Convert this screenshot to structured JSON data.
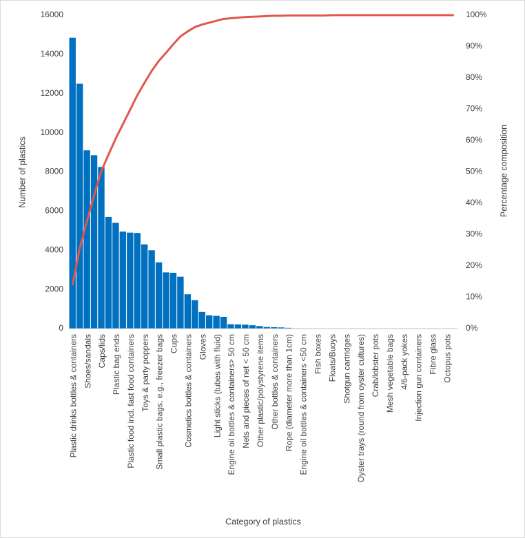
{
  "chart_data": {
    "type": "pareto",
    "x_label": "Category of plastics",
    "y_label": "Number of plastics",
    "y2_label": "Percentage composition",
    "categories": [
      "Plastic drinks bottles & containers",
      null,
      "Shoes/sandals",
      null,
      "Caps/lids",
      null,
      "Plastic bag ends",
      null,
      "Plastic food incl. fast food containers",
      null,
      "Toys & party poppers",
      null,
      "Small plastic bags, e.g., freezer bags",
      null,
      "Cups",
      null,
      "Cosmetics bottles & containers",
      null,
      "Gloves",
      null,
      "Light sticks (tubes with fluid)",
      null,
      "Engine oil bottles & containers> 50 cm",
      null,
      "Nets and pieces of net < 50 cm",
      null,
      "Other plastic/polystyrene items",
      null,
      "Other bottles & containers",
      null,
      "Rope (diameter more than 1cm)",
      null,
      "Engine oil bottles & containers <50 cm",
      null,
      "Fish boxes",
      null,
      "Floats/Buoys",
      null,
      "Shotgun cartridges",
      null,
      "Oyster trays (round from oyster cultures)",
      null,
      "Crab/lobster pots",
      null,
      "Mesh vegetable bags",
      null,
      "4/6-pack yokes",
      null,
      "Injection gun containers",
      null,
      "Fibre glass",
      null,
      "Octopus pots",
      null
    ],
    "series": [
      {
        "type": "bar",
        "color": "#0070c0",
        "values": [
          14850,
          12500,
          9100,
          8850,
          8250,
          5700,
          5400,
          4950,
          4900,
          4880,
          4300,
          4000,
          3380,
          2870,
          2850,
          2650,
          1750,
          1450,
          850,
          680,
          650,
          600,
          220,
          210,
          200,
          170,
          130,
          80,
          70,
          60,
          40,
          20,
          15,
          12,
          10,
          8,
          6,
          5,
          5,
          4,
          3,
          3,
          2,
          2,
          2,
          1,
          1,
          1,
          1,
          1,
          1,
          0,
          0,
          0
        ]
      },
      {
        "type": "line",
        "axis": "y2",
        "color": "#e0584d",
        "values": [
          13.9,
          25.6,
          34.2,
          42.5,
          50.2,
          55.5,
          60.6,
          65.2,
          69.8,
          74.4,
          78.4,
          82.2,
          85.4,
          88.0,
          90.7,
          93.2,
          94.8,
          96.2,
          97.0,
          97.6,
          98.2,
          98.8,
          99.0,
          99.2,
          99.4,
          99.5,
          99.6,
          99.7,
          99.8,
          99.8,
          99.9,
          99.9,
          99.9,
          99.9,
          99.9,
          99.9,
          100,
          100,
          100,
          100,
          100,
          100,
          100,
          100,
          100,
          100,
          100,
          100,
          100,
          100,
          100,
          100,
          100,
          100
        ]
      }
    ],
    "ylim": [
      0,
      16000
    ],
    "yticks": [
      0,
      2000,
      4000,
      6000,
      8000,
      10000,
      12000,
      14000,
      16000
    ],
    "y2lim": [
      0,
      100
    ],
    "y2ticks": [
      {
        "value": 0,
        "label": "0%"
      },
      {
        "value": 10,
        "label": "10%"
      },
      {
        "value": 20,
        "label": "20%"
      },
      {
        "value": 30,
        "label": "30%"
      },
      {
        "value": 40,
        "label": "40%"
      },
      {
        "value": 50,
        "label": "50%"
      },
      {
        "value": 60,
        "label": "60%"
      },
      {
        "value": 70,
        "label": "70%"
      },
      {
        "value": 80,
        "label": "80%"
      },
      {
        "value": 90,
        "label": "90%"
      },
      {
        "value": 100,
        "label": "100%"
      }
    ]
  }
}
